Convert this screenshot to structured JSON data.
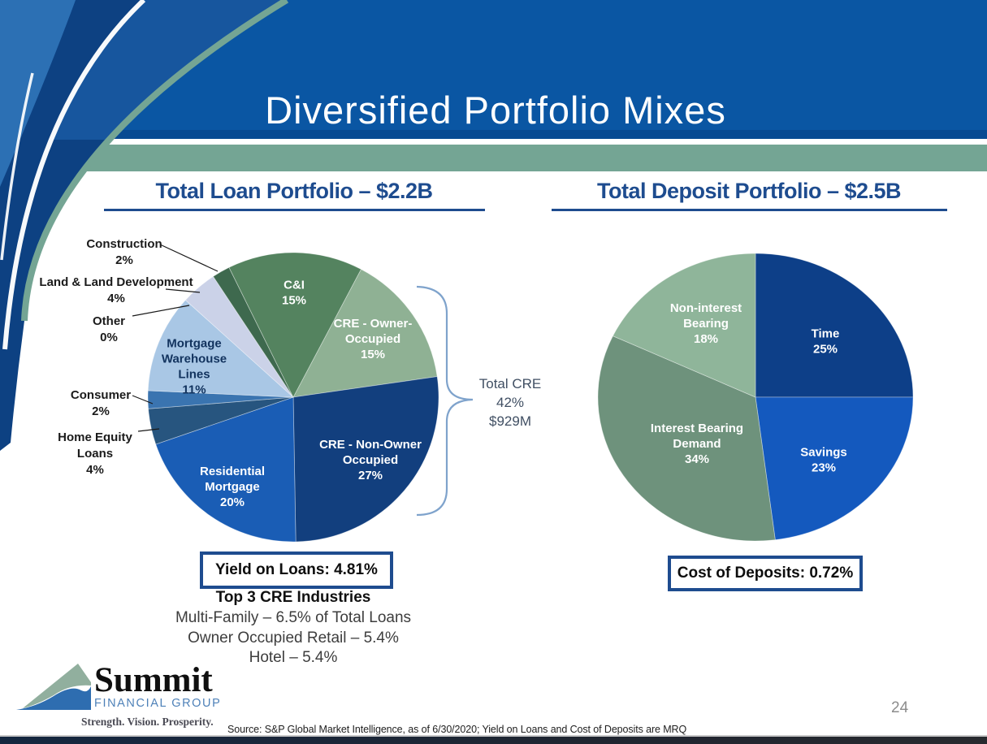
{
  "slide": {
    "title": "Diversified Portfolio Mixes",
    "page_number": "24",
    "source_note": "Source: S&P Global Market Intelligence, as of 6/30/2020; Yield on Loans and Cost of Deposits are MRQ",
    "logo": {
      "name": "Summit",
      "subtitle": "FINANCIAL GROUP",
      "tagline": "Strength. Vision. Prosperity."
    },
    "colors": {
      "header_blue": "#0A56A3",
      "header_dark_line": "#084A92",
      "band_green": "#74A594",
      "swoosh_navy": "#0D4182",
      "swoosh_mid_blue": "#17569E",
      "swoosh_light_blue": "#2C70B4",
      "accent_navy": "#1E4C8F",
      "brace_blue": "#7FA3CC",
      "callout_text": "#404F63",
      "page_number_gray": "#8C8C8C",
      "logo_text_blue": "#4E81B8"
    }
  },
  "loan_section": {
    "heading": "Total Loan Portfolio – $2.2B",
    "callout_lines": [
      "Total CRE",
      "42%",
      "$929M"
    ],
    "yield_label": "Yield on Loans: 4.81%",
    "top3_heading": "Top 3 CRE Industries",
    "top3_lines": [
      "Multi-Family – 6.5% of Total Loans",
      "Owner Occupied Retail – 5.4%",
      "Hotel – 5.4%"
    ]
  },
  "deposit_section": {
    "heading": "Total Deposit Portfolio – $2.5B",
    "cost_label": "Cost of Deposits: 0.72%"
  },
  "chart_data": [
    {
      "id": "loan",
      "type": "pie",
      "title": "Total Loan Portfolio – $2.2B",
      "total": "$2.2B",
      "start_angle_deg": 27.8,
      "slices": [
        {
          "label": "CRE - Owner-Occupied",
          "value": 15,
          "color": "#8FB194",
          "label_lines": [
            "CRE - Owner-",
            "Occupied",
            "15%"
          ],
          "label_color": "#FFFFFF"
        },
        {
          "label": "CRE - Non-Owner Occupied",
          "value": 27,
          "color": "#123F7E",
          "label_lines": [
            "CRE - Non-Owner",
            "Occupied",
            "27%"
          ],
          "label_color": "#FFFFFF"
        },
        {
          "label": "Residential Mortgage",
          "value": 20,
          "color": "#1A5DB5",
          "label_lines": [
            "Residential",
            "Mortgage",
            "20%"
          ],
          "label_color": "#FFFFFF"
        },
        {
          "label": "Home Equity Loans",
          "value": 4,
          "color": "#27557F",
          "outside_lines": [
            "Home Equity",
            "Loans",
            "4%"
          ]
        },
        {
          "label": "Consumer",
          "value": 2,
          "color": "#3A74B0",
          "outside_lines": [
            "Consumer",
            "2%"
          ]
        },
        {
          "label": "Mortgage Warehouse Lines",
          "value": 11,
          "color": "#A9C7E5",
          "label_lines": [
            "Mortgage",
            "Warehouse",
            "Lines",
            "11%"
          ],
          "label_color": "#12335E"
        },
        {
          "label": "Other",
          "value": 0,
          "color": "#D9D9D9",
          "outside_lines": [
            "Other",
            "0%"
          ]
        },
        {
          "label": "Land & Land Development",
          "value": 4,
          "color": "#CBD2E8",
          "outside_lines": [
            "Land & Land Development",
            "4%"
          ]
        },
        {
          "label": "Construction",
          "value": 2,
          "color": "#3E694E",
          "outside_lines": [
            "Construction",
            "2%"
          ]
        },
        {
          "label": "C&I",
          "value": 15,
          "color": "#54835F",
          "label_lines": [
            "C&I",
            "15%"
          ],
          "label_color": "#FFFFFF"
        }
      ]
    },
    {
      "id": "deposit",
      "type": "pie",
      "title": "Total Deposit Portfolio – $2.5B",
      "total": "$2.5B",
      "start_angle_deg": 0,
      "slices": [
        {
          "label": "Time",
          "value": 25,
          "color": "#0D3F88",
          "label_lines": [
            "Time",
            "25%"
          ],
          "label_color": "#FFFFFF"
        },
        {
          "label": "Savings",
          "value": 23,
          "color": "#1459BE",
          "label_lines": [
            "Savings",
            "23%"
          ],
          "label_color": "#FFFFFF"
        },
        {
          "label": "Interest Bearing Demand",
          "value": 34,
          "color": "#6E927C",
          "label_lines": [
            "Interest Bearing",
            "Demand",
            "34%"
          ],
          "label_color": "#FFFFFF"
        },
        {
          "label": "Non-interest Bearing",
          "value": 18,
          "color": "#8FB59A",
          "label_lines": [
            "Non-interest",
            "Bearing",
            "18%"
          ],
          "label_color": "#FFFFFF"
        }
      ]
    }
  ]
}
